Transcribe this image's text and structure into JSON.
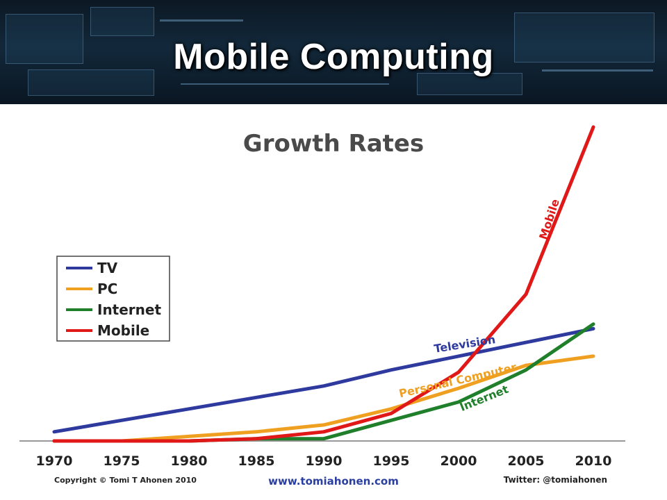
{
  "slide": {
    "title": "Mobile Computing"
  },
  "chart_data": {
    "type": "line",
    "title": "Growth Rates",
    "x": [
      1970,
      1975,
      1980,
      1985,
      1990,
      1995,
      2000,
      2005,
      2010
    ],
    "xlabel": "",
    "ylabel": "",
    "ylim": [
      0,
      100
    ],
    "grid": false,
    "legend": {
      "placement": "left",
      "entries": [
        "TV",
        "PC",
        "Internet",
        "Mobile"
      ]
    },
    "series": [
      {
        "name": "TV",
        "label": "Television",
        "color": "#2e3a9e",
        "values": [
          4,
          9,
          14,
          19,
          24,
          31,
          37,
          43,
          49
        ]
      },
      {
        "name": "PC",
        "label": "Personal Computer",
        "color": "#f0a020",
        "values": [
          0,
          0,
          2,
          4,
          7,
          14,
          23,
          33,
          37
        ]
      },
      {
        "name": "Internet",
        "label": "Internet",
        "color": "#1f7f2a",
        "values": [
          0,
          0,
          0,
          1,
          1,
          9,
          17,
          31,
          51
        ]
      },
      {
        "name": "Mobile",
        "label": "Mobile",
        "color": "#e01818",
        "values": [
          0,
          0,
          0,
          1,
          4,
          12,
          30,
          64,
          137
        ]
      }
    ],
    "footer": {
      "copyright": "Copyright © Tomi T Ahonen 2010",
      "website": "www.tomiahonen.com",
      "twitter": "Twitter: @tomiahonen"
    }
  }
}
